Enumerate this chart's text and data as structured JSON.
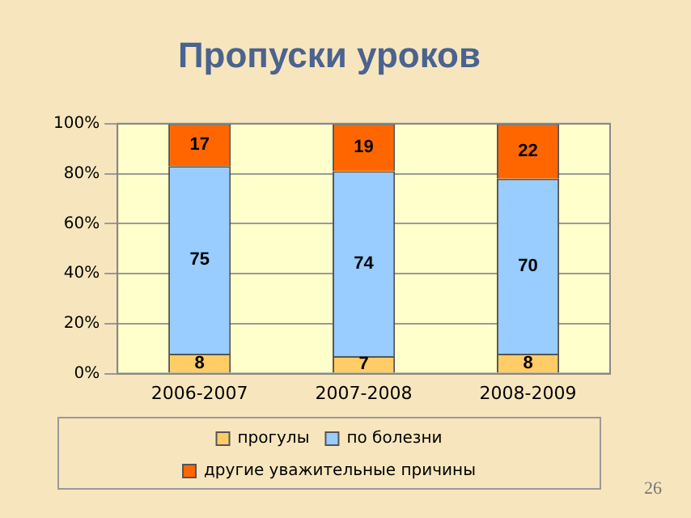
{
  "chart_data": {
    "type": "bar",
    "title": "Пропуски уроков",
    "stacked": true,
    "categories": [
      "2006-2007",
      "2007-2008",
      "2008-2009"
    ],
    "series": [
      {
        "name": "прогулы",
        "color": "#ffcc66",
        "values": [
          8,
          7,
          8
        ]
      },
      {
        "name": "по болезни",
        "color": "#99ccff",
        "values": [
          75,
          74,
          70
        ]
      },
      {
        "name": "другие уважительные причины",
        "color": "#ff6600",
        "values": [
          17,
          19,
          22
        ]
      }
    ],
    "ylim": [
      0,
      100
    ],
    "yticks": [
      {
        "value": 0,
        "label": "0%"
      },
      {
        "value": 20,
        "label": "20%"
      },
      {
        "value": 40,
        "label": "40%"
      },
      {
        "value": 60,
        "label": "60%"
      },
      {
        "value": 80,
        "label": "80%"
      },
      {
        "value": 100,
        "label": "100%"
      }
    ],
    "grid": "y",
    "legend": "bottom",
    "data_labels": true,
    "annotations": [
      "26"
    ]
  }
}
